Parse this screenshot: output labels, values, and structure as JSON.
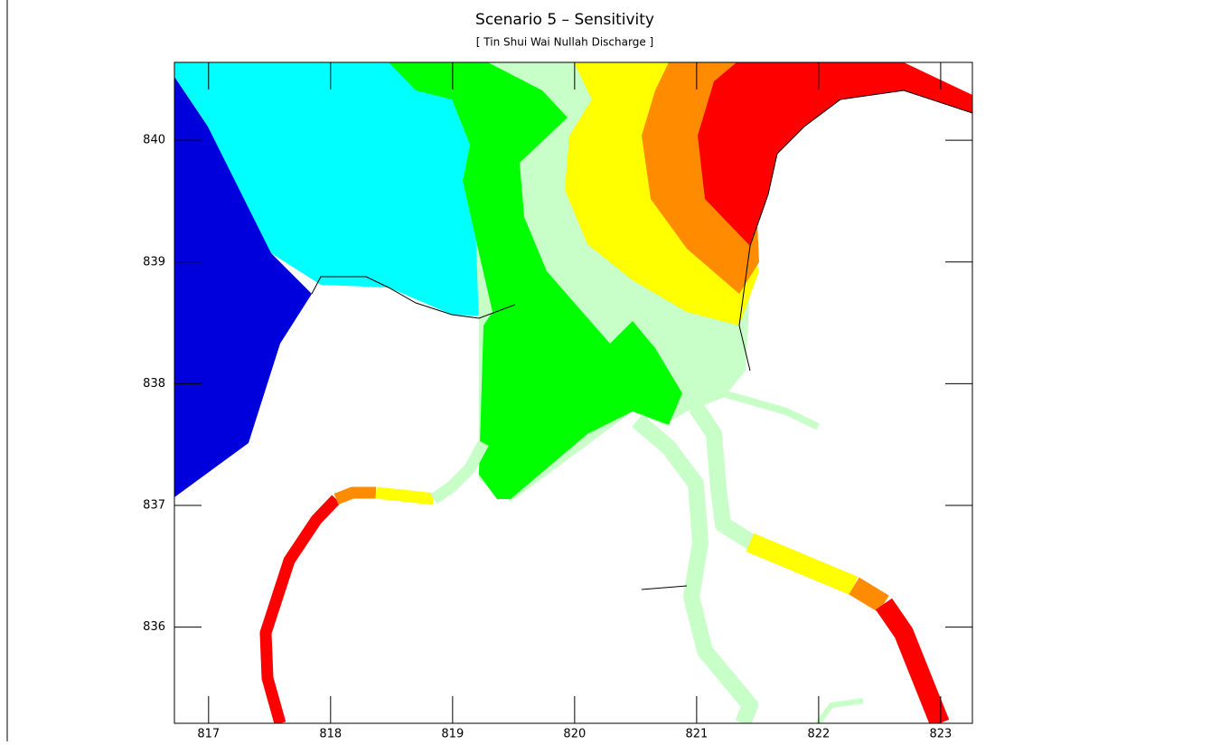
{
  "chart_data": {
    "type": "contour",
    "title": "Scenario 5 – Sensitivity",
    "subtitle": "[ Tin Shui Wai Nullah Discharge ]",
    "xlim": [
      816.72,
      823.26
    ],
    "ylim": [
      835.21,
      840.64
    ],
    "xticks": [
      817,
      818,
      819,
      820,
      821,
      822,
      823
    ],
    "yticks": [
      836,
      837,
      838,
      839,
      840
    ]
  }
}
